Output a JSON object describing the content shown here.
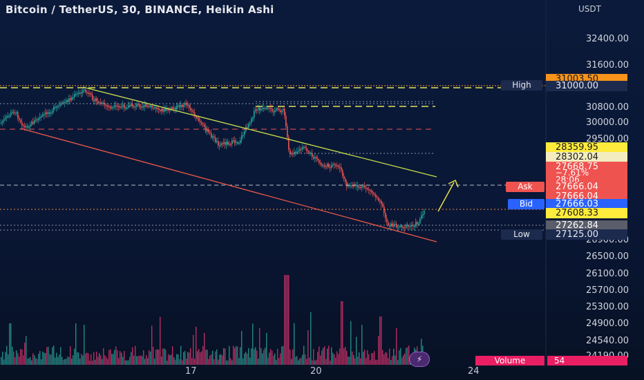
{
  "header": {
    "title": "Bitcoin / TetherUS, 30, BINANCE, Heikin Ashi",
    "currency": "USDT"
  },
  "price_axis": {
    "labels": [
      "32400.00",
      "31600.00",
      "30800.00",
      "30000.00",
      "29500.00",
      "26900.00",
      "26500.00",
      "26100.00",
      "25700.00",
      "25300.00",
      "24900.00",
      "24540.00",
      "24190.00"
    ]
  },
  "price_tags": {
    "high_value": "31003.50",
    "high_level": "31000.00",
    "t1": "28359.95",
    "t2": "28302.04",
    "current_price": "27668.75",
    "current_change": "−7.61%",
    "current_timer": "28:06",
    "ask": "27666.04",
    "ask2": "27666.04",
    "bid": "27666.03",
    "t3": "27608.33",
    "t4": "27262.84",
    "low_level": "27125.00"
  },
  "side_labels": {
    "high": "High",
    "ask": "Ask",
    "bid": "Bid",
    "low": "Low"
  },
  "time_axis": {
    "labels": [
      "17",
      "20",
      "24"
    ]
  },
  "volume": {
    "label": "Volume",
    "value": "54"
  },
  "colors": {
    "up": "#26a69a",
    "down": "#ef5350",
    "upper_trendline": "#c8e04a",
    "lower_trendline": "#f05a4a",
    "high_tag": "#f7931a",
    "ask_tag": "#ef5350",
    "bid_tag": "#2962ff",
    "yellow_tag": "#ffeb3b",
    "volume_tag": "#e91e63"
  }
}
